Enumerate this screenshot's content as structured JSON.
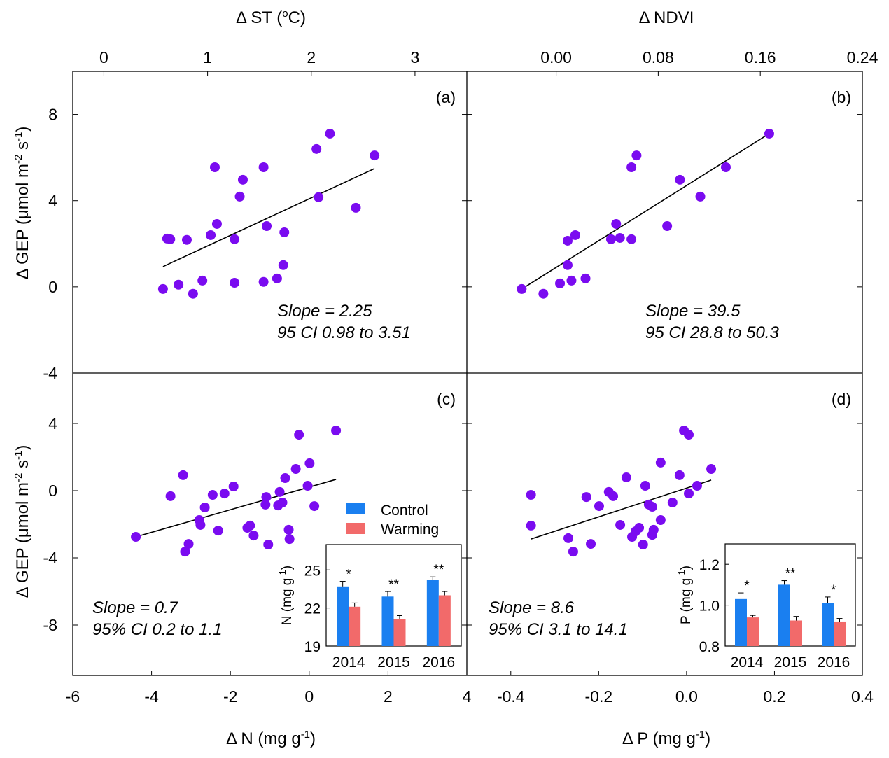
{
  "figure": {
    "y_axis_title_prefix": "Δ GEP (μmol m",
    "y_axis_title_sup1": "-2",
    "y_axis_title_mid": " s",
    "y_axis_title_sup2": "-1",
    "y_axis_title_suffix": ")"
  },
  "colors": {
    "points": "#7a0bf0",
    "control": "#1a7ff0",
    "warming": "#f26a6a",
    "line": "#000000"
  },
  "legend": {
    "items": [
      {
        "label": "Control",
        "color": "#1a7ff0"
      },
      {
        "label": "Warming",
        "color": "#f26a6a"
      }
    ]
  },
  "chart_data": [
    {
      "id": "a",
      "type": "scatter",
      "panel_label": "(a)",
      "xlabel_prefix": "Δ ST (",
      "xlabel_sup": "o",
      "xlabel_suffix": "C)",
      "xaxis_position": "top",
      "ylabel": "Δ GEP (μmol m-2 s-1)",
      "xlim": [
        -0.3,
        3.5
      ],
      "ylim": [
        -4,
        10
      ],
      "xticks": [
        0,
        1,
        2,
        3
      ],
      "xtick_labels": [
        "0",
        "1",
        "2",
        "3"
      ],
      "yticks": [
        -4,
        0,
        4,
        8
      ],
      "ytick_labels": [
        "-4",
        "0",
        "4",
        "8"
      ],
      "points": [
        [
          0.57,
          -0.1
        ],
        [
          0.72,
          0.1
        ],
        [
          0.86,
          -0.32
        ],
        [
          0.95,
          0.29
        ],
        [
          1.26,
          0.19
        ],
        [
          1.54,
          0.23
        ],
        [
          1.67,
          0.39
        ],
        [
          1.73,
          1.01
        ],
        [
          0.61,
          2.24
        ],
        [
          0.64,
          2.21
        ],
        [
          0.8,
          2.18
        ],
        [
          1.03,
          2.4
        ],
        [
          1.09,
          2.92
        ],
        [
          1.26,
          2.21
        ],
        [
          1.57,
          2.82
        ],
        [
          1.74,
          2.53
        ],
        [
          1.31,
          4.19
        ],
        [
          1.34,
          4.97
        ],
        [
          1.07,
          5.55
        ],
        [
          1.54,
          5.55
        ],
        [
          2.07,
          4.16
        ],
        [
          2.43,
          3.67
        ],
        [
          2.05,
          6.4
        ],
        [
          2.18,
          7.11
        ],
        [
          2.61,
          6.1
        ]
      ],
      "fit_line": [
        [
          0.57,
          0.94
        ],
        [
          2.61,
          5.49
        ]
      ],
      "annotation": [
        "Slope = 2.25",
        "95 CI 0.98 to 3.51"
      ]
    },
    {
      "id": "b",
      "type": "scatter",
      "panel_label": "(b)",
      "xlabel_prefix": "Δ NDVI",
      "xlabel_sup": "",
      "xlabel_suffix": "",
      "xaxis_position": "top",
      "ylabel": "Δ GEP (μmol m-2 s-1)",
      "xlim": [
        -0.07,
        0.24
      ],
      "ylim": [
        -4,
        10
      ],
      "xticks": [
        0.0,
        0.08,
        0.16,
        0.24
      ],
      "xtick_labels": [
        "0.00",
        "0.08",
        "0.16",
        "0.24"
      ],
      "yticks": [
        -4,
        0,
        4,
        8
      ],
      "ytick_labels": [],
      "points": [
        [
          -0.027,
          -0.1
        ],
        [
          -0.01,
          -0.32
        ],
        [
          0.003,
          0.16
        ],
        [
          0.012,
          0.29
        ],
        [
          0.023,
          0.39
        ],
        [
          0.009,
          1.01
        ],
        [
          0.009,
          2.14
        ],
        [
          0.015,
          2.4
        ],
        [
          0.043,
          2.21
        ],
        [
          0.05,
          2.27
        ],
        [
          0.047,
          2.92
        ],
        [
          0.059,
          2.21
        ],
        [
          0.087,
          2.82
        ],
        [
          0.059,
          5.55
        ],
        [
          0.063,
          6.1
        ],
        [
          0.097,
          4.97
        ],
        [
          0.113,
          4.19
        ],
        [
          0.133,
          5.55
        ],
        [
          0.167,
          7.11
        ]
      ],
      "fit_line": [
        [
          -0.027,
          -0.1
        ],
        [
          0.167,
          7.11
        ]
      ],
      "annotation": [
        "Slope = 39.5",
        "95 CI 28.8 to 50.3"
      ]
    },
    {
      "id": "c",
      "type": "scatter",
      "panel_label": "(c)",
      "xlabel_prefix": "Δ N (mg g",
      "xlabel_sup": "-1",
      "xlabel_suffix": ")",
      "xaxis_position": "bottom",
      "ylabel": "Δ GEP (μmol m-2 s-1)",
      "xlim": [
        -6,
        4
      ],
      "ylim": [
        -11,
        7
      ],
      "xticks": [
        -6,
        -4,
        -2,
        0,
        2,
        4
      ],
      "xtick_labels": [
        "-6",
        "-4",
        "-2",
        "0",
        "2",
        "4"
      ],
      "yticks": [
        -8,
        -4,
        0,
        4
      ],
      "ytick_labels": [
        "-8",
        "-4",
        "0",
        "4"
      ],
      "points": [
        [
          -4.4,
          -2.75
        ],
        [
          -3.52,
          -0.33
        ],
        [
          -3.2,
          0.92
        ],
        [
          -3.06,
          -3.17
        ],
        [
          -3.15,
          -3.63
        ],
        [
          -2.65,
          -1.0
        ],
        [
          -2.79,
          -1.75
        ],
        [
          -2.76,
          -2.04
        ],
        [
          -2.45,
          -0.25
        ],
        [
          -2.31,
          -2.38
        ],
        [
          -2.15,
          -0.17
        ],
        [
          -1.92,
          0.25
        ],
        [
          -1.57,
          -2.21
        ],
        [
          -1.5,
          -2.08
        ],
        [
          -1.41,
          -2.67
        ],
        [
          -1.09,
          -0.38
        ],
        [
          -1.11,
          -0.83
        ],
        [
          -1.04,
          -3.21
        ],
        [
          -0.75,
          -0.08
        ],
        [
          -0.79,
          -0.88
        ],
        [
          -0.68,
          -0.71
        ],
        [
          -0.61,
          0.75
        ],
        [
          -0.52,
          -2.33
        ],
        [
          -0.5,
          -2.88
        ],
        [
          -0.34,
          1.29
        ],
        [
          -0.26,
          3.33
        ],
        [
          -0.04,
          0.29
        ],
        [
          0.01,
          1.63
        ],
        [
          0.13,
          -0.92
        ],
        [
          0.68,
          3.58
        ]
      ],
      "fit_line": [
        [
          -4.4,
          -2.75
        ],
        [
          0.68,
          0.67
        ]
      ],
      "annotation": [
        "Slope = 0.7",
        "95% CI 0.2 to 1.1"
      ],
      "inset": {
        "type": "bar",
        "ylabel_prefix": "N (mg g",
        "ylabel_sup": "-1",
        "ylabel_suffix": ")",
        "categories": [
          "2014",
          "2015",
          "2016"
        ],
        "ylim": [
          19,
          27
        ],
        "yticks": [
          19,
          22,
          25
        ],
        "ytick_labels": [
          "19",
          "22",
          "25"
        ],
        "series": [
          {
            "name": "Control",
            "values": [
              23.7,
              22.9,
              24.2
            ],
            "errors": [
              0.4,
              0.4,
              0.25
            ]
          },
          {
            "name": "Warming",
            "values": [
              22.1,
              21.1,
              23.0
            ],
            "errors": [
              0.3,
              0.3,
              0.3
            ]
          }
        ],
        "significance": [
          "*",
          "**",
          "**"
        ]
      }
    },
    {
      "id": "d",
      "type": "scatter",
      "panel_label": "(d)",
      "xlabel_prefix": "Δ P (mg g",
      "xlabel_sup": "-1",
      "xlabel_suffix": ")",
      "xaxis_position": "bottom",
      "ylabel": "Δ GEP (μmol m-2 s-1)",
      "xlim": [
        -0.5,
        0.4
      ],
      "ylim": [
        -11,
        7
      ],
      "xticks": [
        -0.4,
        -0.2,
        0.0,
        0.2,
        0.4
      ],
      "xtick_labels": [
        "-0.4",
        "-0.2",
        "0.0",
        "0.2",
        "0.4"
      ],
      "yticks": [
        -8,
        -4,
        0,
        4
      ],
      "ytick_labels": [],
      "points": [
        [
          -0.354,
          -0.25
        ],
        [
          -0.354,
          -2.08
        ],
        [
          -0.269,
          -2.83
        ],
        [
          -0.258,
          -3.63
        ],
        [
          -0.228,
          -0.38
        ],
        [
          -0.218,
          -3.17
        ],
        [
          -0.199,
          -0.92
        ],
        [
          -0.177,
          -0.08
        ],
        [
          -0.167,
          -0.33
        ],
        [
          -0.151,
          -2.04
        ],
        [
          -0.137,
          0.79
        ],
        [
          -0.124,
          -2.75
        ],
        [
          -0.116,
          -2.42
        ],
        [
          -0.108,
          -2.21
        ],
        [
          -0.099,
          -3.21
        ],
        [
          -0.094,
          0.29
        ],
        [
          -0.086,
          -0.83
        ],
        [
          -0.078,
          -0.96
        ],
        [
          -0.078,
          -2.63
        ],
        [
          -0.075,
          -2.33
        ],
        [
          -0.059,
          -1.75
        ],
        [
          -0.059,
          1.67
        ],
        [
          -0.032,
          -0.71
        ],
        [
          -0.016,
          0.92
        ],
        [
          -0.006,
          3.58
        ],
        [
          0.005,
          3.33
        ],
        [
          0.005,
          -0.17
        ],
        [
          0.024,
          0.29
        ],
        [
          0.056,
          1.29
        ]
      ],
      "fit_line": [
        [
          -0.354,
          -2.88
        ],
        [
          0.056,
          0.63
        ]
      ],
      "annotation": [
        "Slope = 8.6",
        "95% CI 3.1 to 14.1"
      ],
      "inset": {
        "type": "bar",
        "ylabel_prefix": "P (mg g",
        "ylabel_sup": "-1",
        "ylabel_suffix": ")",
        "categories": [
          "2014",
          "2015",
          "2016"
        ],
        "ylim": [
          0.8,
          1.3
        ],
        "yticks": [
          0.8,
          1.0,
          1.2
        ],
        "ytick_labels": [
          "0.8",
          "1.0",
          "1.2"
        ],
        "series": [
          {
            "name": "Control",
            "values": [
              1.03,
              1.1,
              1.01
            ],
            "errors": [
              0.03,
              0.02,
              0.03
            ]
          },
          {
            "name": "Warming",
            "values": [
              0.94,
              0.925,
              0.92
            ],
            "errors": [
              0.01,
              0.02,
              0.015
            ]
          }
        ],
        "significance": [
          "*",
          "**",
          "*"
        ]
      }
    }
  ]
}
